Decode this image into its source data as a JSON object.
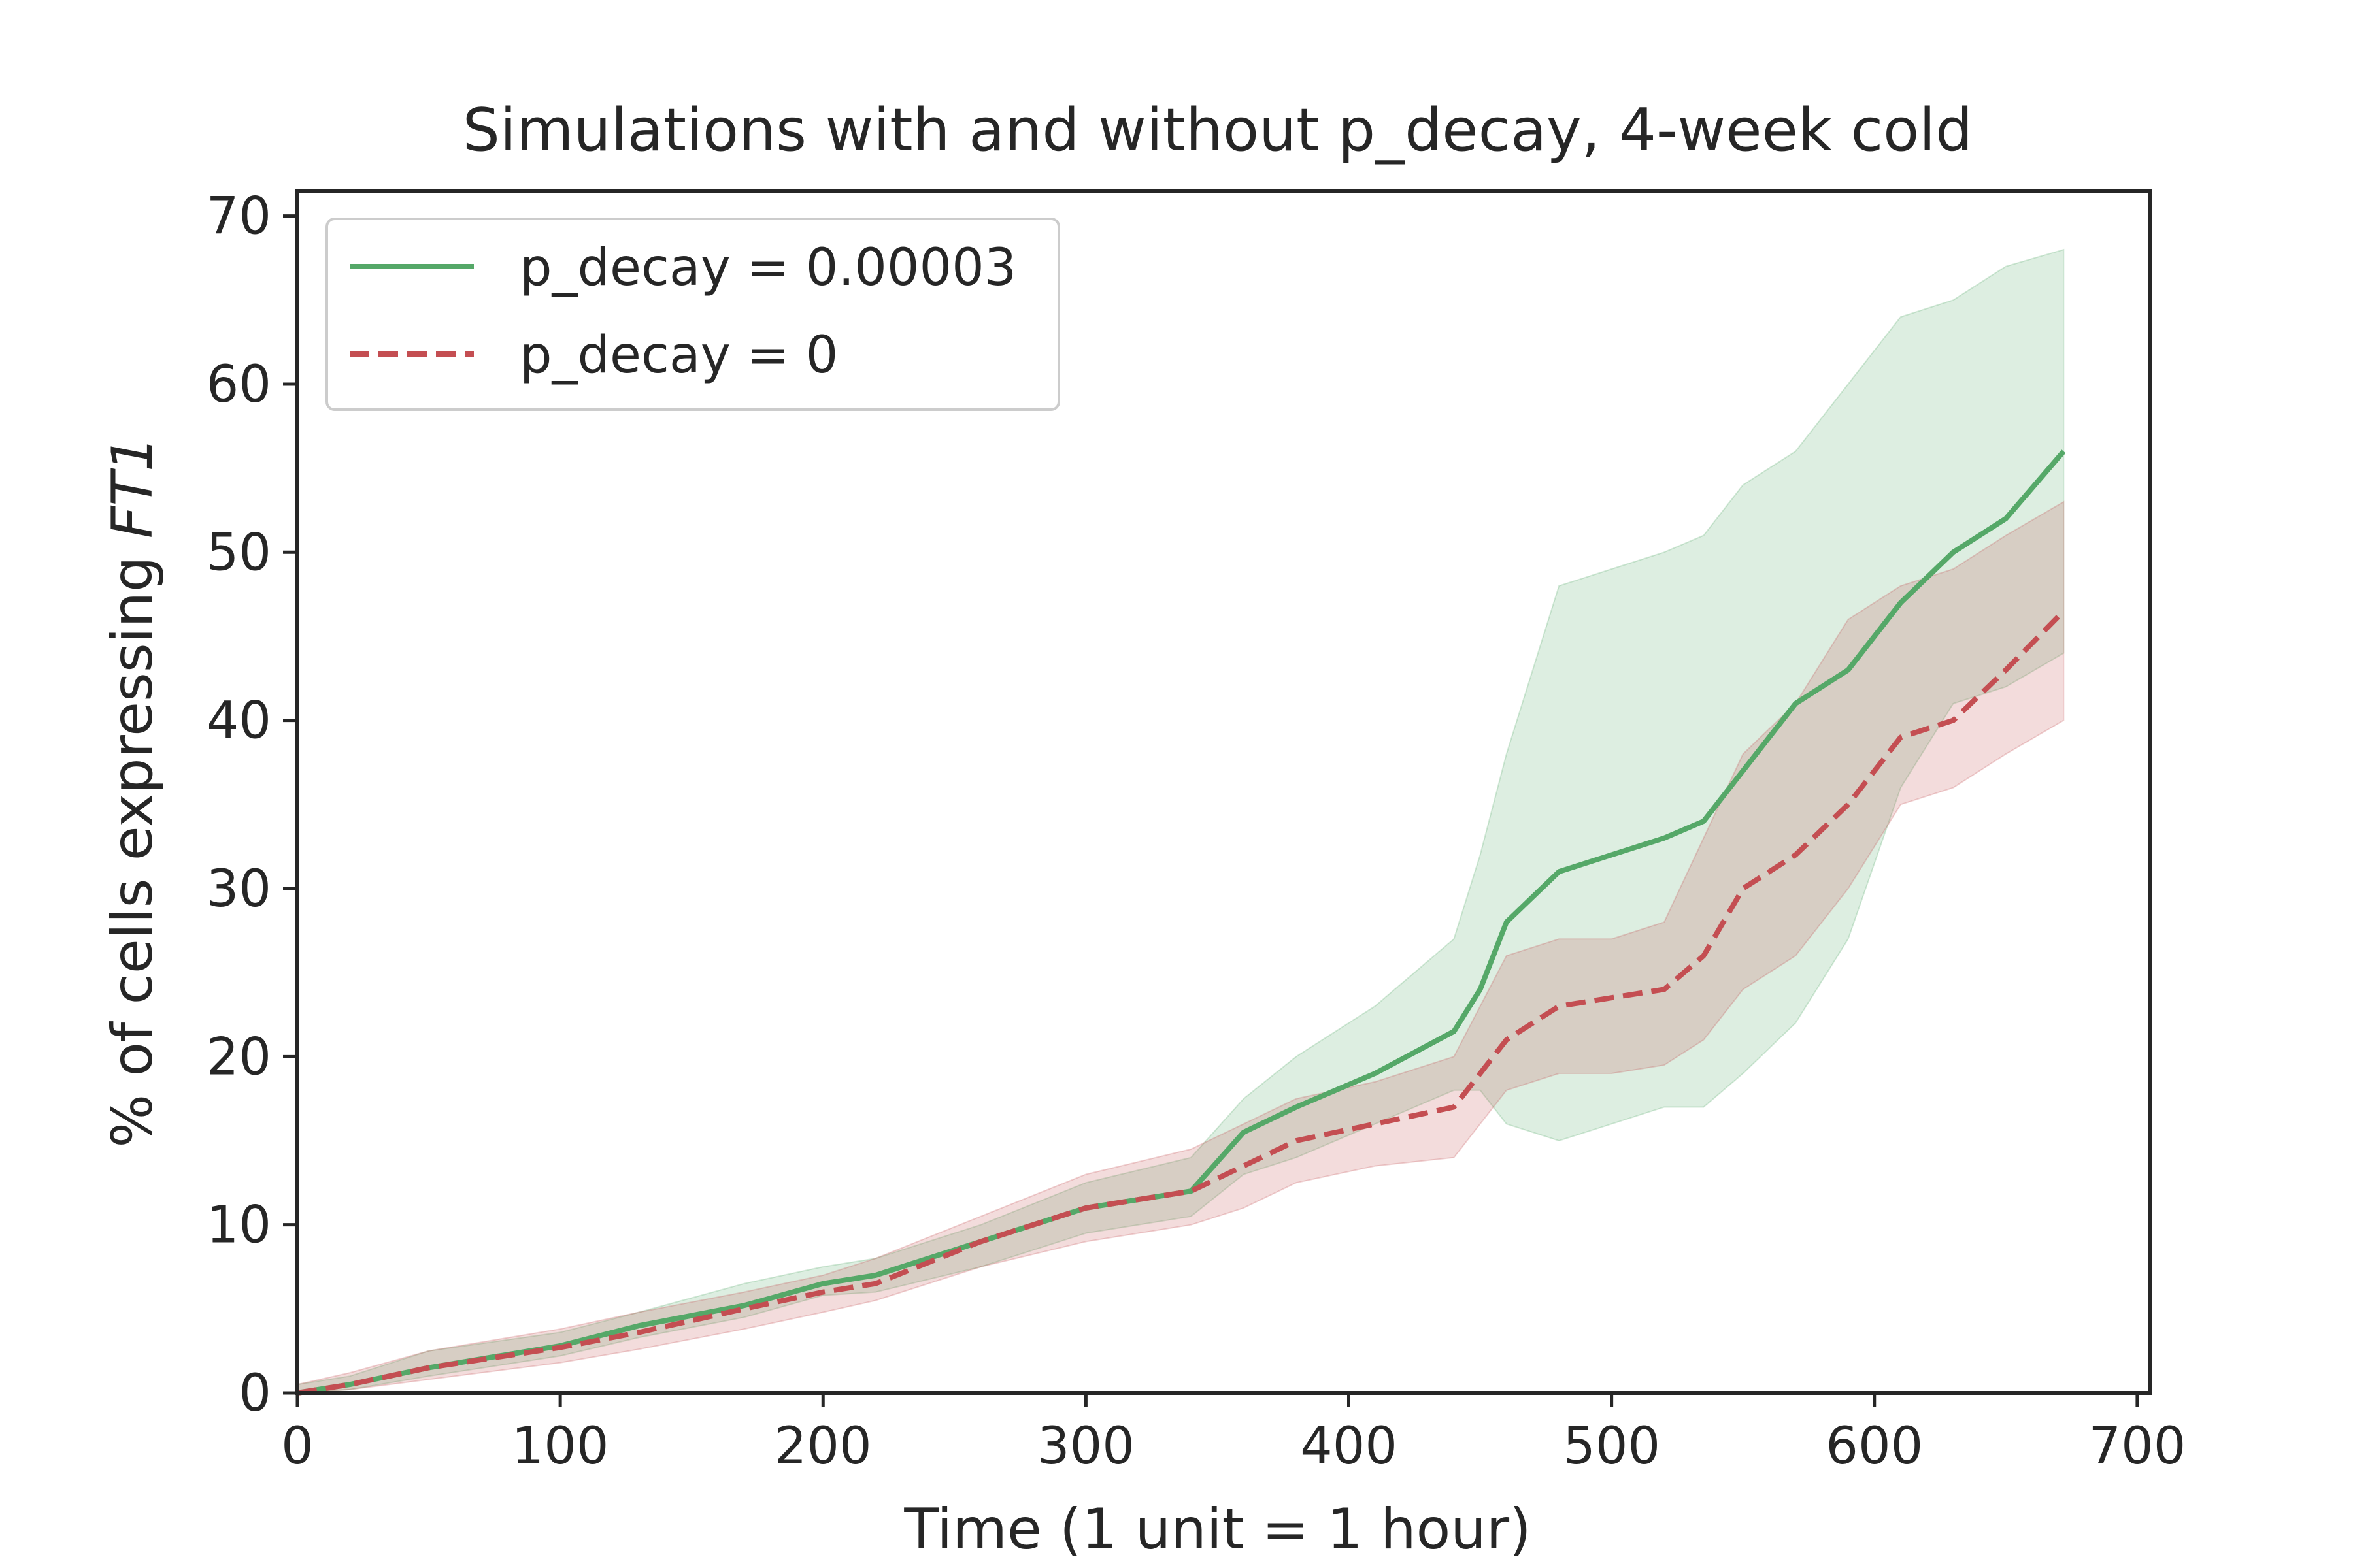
{
  "chart_data": {
    "type": "line",
    "title": "Simulations with and without p_decay, 4-week cold",
    "xlabel": "Time (1 unit = 1 hour)",
    "ylabel_prefix": "% of cells expressing ",
    "ylabel_italic": "FT1",
    "xlim": [
      0,
      705
    ],
    "ylim": [
      0,
      71.5
    ],
    "xticks": [
      0,
      100,
      200,
      300,
      400,
      500,
      600,
      700
    ],
    "yticks": [
      0,
      10,
      20,
      30,
      40,
      50,
      60,
      70
    ],
    "grid": false,
    "legend_position": "top-left",
    "series": [
      {
        "name": "p_decay = 0.00003",
        "color": "#55a868",
        "style": "solid",
        "x": [
          0,
          20,
          50,
          100,
          130,
          170,
          200,
          220,
          260,
          300,
          340,
          360,
          380,
          410,
          440,
          450,
          460,
          480,
          500,
          520,
          535,
          550,
          570,
          590,
          610,
          630,
          650,
          672
        ],
        "mean": [
          0,
          0.5,
          1.5,
          2.8,
          4.0,
          5.2,
          6.5,
          7.0,
          9.0,
          11.0,
          12.0,
          15.5,
          17.0,
          19.0,
          21.5,
          24.0,
          28.0,
          31.0,
          32.0,
          33.0,
          34.0,
          37.0,
          41.0,
          43.0,
          47.0,
          50.0,
          52.0,
          56.0
        ],
        "lower": [
          0,
          0.2,
          1.0,
          2.2,
          3.3,
          4.5,
          5.8,
          6.0,
          7.5,
          9.5,
          10.5,
          13.0,
          14.0,
          16.0,
          18.0,
          18.0,
          16.0,
          15.0,
          16.0,
          17.0,
          17.0,
          19.0,
          22.0,
          27.0,
          36.0,
          41.0,
          42.0,
          44.0
        ],
        "upper": [
          0.5,
          1.0,
          2.5,
          3.6,
          4.8,
          6.5,
          7.5,
          8.0,
          10.0,
          12.5,
          14.0,
          17.5,
          20.0,
          23.0,
          27.0,
          32.0,
          38.0,
          48.0,
          49.0,
          50.0,
          51.0,
          54.0,
          56.0,
          60.0,
          64.0,
          65.0,
          67.0,
          68.0
        ]
      },
      {
        "name": "p_decay = 0",
        "color": "#c44e52",
        "style": "dashed",
        "x": [
          0,
          20,
          50,
          100,
          130,
          170,
          200,
          220,
          260,
          300,
          340,
          360,
          380,
          410,
          440,
          450,
          460,
          480,
          500,
          520,
          535,
          550,
          570,
          590,
          610,
          630,
          650,
          672
        ],
        "mean": [
          0,
          0.5,
          1.5,
          2.7,
          3.6,
          5.0,
          6.0,
          6.5,
          9.0,
          11.0,
          12.0,
          13.5,
          15.0,
          16.0,
          17.0,
          19.0,
          21.0,
          23.0,
          23.5,
          24.0,
          26.0,
          30.0,
          32.0,
          35.0,
          39.0,
          40.0,
          43.0,
          46.5
        ],
        "lower": [
          0,
          0.2,
          0.8,
          1.8,
          2.6,
          3.8,
          4.8,
          5.5,
          7.5,
          9.0,
          10.0,
          11.0,
          12.5,
          13.5,
          14.0,
          16.0,
          18.0,
          19.0,
          19.0,
          19.5,
          21.0,
          24.0,
          26.0,
          30.0,
          35.0,
          36.0,
          38.0,
          40.0
        ],
        "upper": [
          0.5,
          1.2,
          2.5,
          3.8,
          4.8,
          6.0,
          7.0,
          8.0,
          10.5,
          13.0,
          14.5,
          16.0,
          17.5,
          18.5,
          20.0,
          23.0,
          26.0,
          27.0,
          27.0,
          28.0,
          33.0,
          38.0,
          41.0,
          46.0,
          48.0,
          49.0,
          51.0,
          53.0
        ]
      }
    ]
  }
}
